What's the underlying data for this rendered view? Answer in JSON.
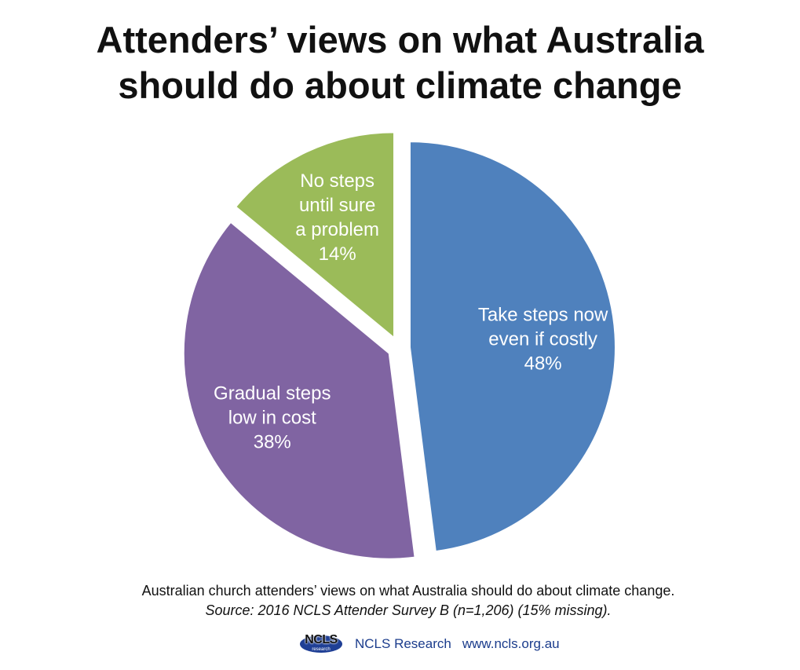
{
  "title": {
    "line1": "Attenders’ views on what Australia",
    "line2": "should do about climate change"
  },
  "chart_data": {
    "type": "pie",
    "title": "Attenders’ views on what Australia should do about climate change",
    "slices": [
      {
        "label_lines": [
          "Take steps now",
          "even if costly"
        ],
        "value": 48,
        "value_label": "48%",
        "color": "#4f81bd"
      },
      {
        "label_lines": [
          "Gradual steps",
          "low in cost"
        ],
        "value": 38,
        "value_label": "38%",
        "color": "#8064a2"
      },
      {
        "label_lines": [
          "No steps",
          "until sure",
          "a problem"
        ],
        "value": 14,
        "value_label": "14%",
        "color": "#9bbb59"
      }
    ],
    "legend": "none",
    "label_color": "#ffffff"
  },
  "caption": {
    "text": "Australian church attenders’ views on what Australia should do about climate change.",
    "source": "Source: 2016 NCLS Attender Survey B (n=1,206) (15% missing)."
  },
  "footer": {
    "logo_text": "NCLS",
    "logo_subtext": "research",
    "org_name": "NCLS Research",
    "url": "www.ncls.org.au",
    "brand_color": "#1f3f95"
  }
}
